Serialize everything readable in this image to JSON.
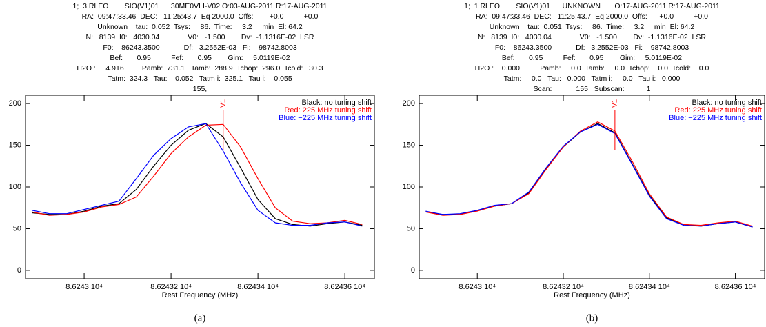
{
  "chart_data": [
    {
      "type": "line",
      "header_lines": [
        "1;  3 RLEO        SIO(V1)01      30ME0VLI-V02 O:03-AUG-2011 R:17-AUG-2011",
        "RA:  09:47:33.46  DEC:   11:25:43.7  Eq 2000.0  Offs:        +0.0          +0.0",
        "Unknown    tau:  0.052  Tsys:     86.  Time:     3.2     min  El: 64.2",
        "N:   8139  I0:   4030.04              V0:   -1.500        Dv:  -1.1316E-02  LSR",
        "F0:    86243.3500            Df:   3.2552E-03   Fi:    98742.8003",
        "Bef:       0.95          Fef:       0.95        Gim:     5.0119E-02",
        "H2O :     4.916         Pamb:  731.1   Tamb:  288.9  Tchop:  296.0  Tcold:   30.3",
        "Tatm:  324.3   Tau:    0.052   Tatm i:  325.1   Tau i:    0.055",
        "155,"
      ],
      "xlabel": "Rest Frequency (MHz)",
      "caption": "(a)",
      "x": [
        86242.88,
        86242.92,
        86242.96,
        86243.0,
        86243.04,
        86243.08,
        86243.12,
        86243.16,
        86243.2,
        86243.24,
        86243.28,
        86243.32,
        86243.36,
        86243.4,
        86243.44,
        86243.48,
        86243.52,
        86243.56,
        86243.6,
        86243.64
      ],
      "series": [
        {
          "name": "Black: no tuning shift",
          "color": "#000000",
          "values": [
            69,
            67,
            67,
            71,
            77,
            80,
            97,
            125,
            150,
            168,
            176,
            160,
            123,
            85,
            62,
            55,
            53,
            56,
            58,
            54
          ]
        },
        {
          "name": "Red: 225 MHz tuning shift",
          "color": "#ff0000",
          "values": [
            70,
            66,
            67,
            70,
            76,
            79,
            88,
            113,
            140,
            160,
            174,
            175,
            148,
            110,
            75,
            59,
            56,
            57,
            60,
            55
          ]
        },
        {
          "name": "Blue: −225 MHz tuning shift",
          "color": "#0000ff",
          "values": [
            72,
            68,
            68,
            73,
            78,
            83,
            110,
            138,
            158,
            172,
            176,
            143,
            105,
            72,
            57,
            54,
            54,
            57,
            58,
            53
          ]
        }
      ],
      "marker": {
        "label": "V1",
        "x": 86243.32,
        "color": "#ff0000"
      },
      "xlim": [
        86242.865,
        86243.668
      ],
      "xticks": [
        {
          "value": 86243.0,
          "label": "8.6243 10⁴"
        },
        {
          "value": 86243.2,
          "label": "8.62432 10⁴"
        },
        {
          "value": 86243.4,
          "label": "8.62434 10⁴"
        },
        {
          "value": 86243.6,
          "label": "8.62436 10⁴"
        }
      ],
      "ylim": [
        -10,
        210
      ],
      "yticks": [
        0,
        50,
        100,
        150,
        200
      ],
      "grid": false
    },
    {
      "type": "line",
      "header_lines": [
        "1;  1 RLEO        SIO(V1)01      UNKNOWN       O:17-AUG-2011 R:17-AUG-2011",
        "RA:  09:47:33.46  DEC:   11:25:43.7  Eq 2000.0  Offs:      +0.0          +0.0",
        "Unknown    tau:  0.051  Tsys:     86.  Time:     3.2     min  El: 64.2",
        "N:   8139  I0:   4030.04              V0:   -1.500        Dv:  -1.1316E-02  LSR",
        "F0:    86243.3500            Df:   3.2552E-03   Fi:    98742.8003",
        "Bef:       0.95          Fef:       0.95        Gim:     5.0119E-02",
        "H2O :    0.000          Pamb:     0.0  Tamb:     0.0  Tchop:    0.0  Tcold:    0.0",
        "Tatm:     0.0   Tau:   0.000   Tatm i:     0.0   Tau i:   0.000",
        "Scan:            155   Subscan:           1"
      ],
      "xlabel": "Rest Frequency (MHz)",
      "caption": "(b)",
      "x": [
        86242.88,
        86242.92,
        86242.96,
        86243.0,
        86243.04,
        86243.08,
        86243.12,
        86243.16,
        86243.2,
        86243.24,
        86243.28,
        86243.32,
        86243.36,
        86243.4,
        86243.44,
        86243.48,
        86243.52,
        86243.56,
        86243.6,
        86243.64
      ],
      "series": [
        {
          "name": "Black: no tuning shift",
          "color": "#000000",
          "values": [
            70,
            67,
            67,
            72,
            77,
            80,
            93,
            122,
            148,
            166,
            176,
            165,
            128,
            90,
            63,
            55,
            53,
            56,
            58,
            52
          ]
        },
        {
          "name": "Red: 225 MHz tuning shift",
          "color": "#ff0000",
          "values": [
            70,
            66,
            67,
            71,
            77,
            80,
            92,
            121,
            148,
            167,
            178,
            167,
            131,
            92,
            64,
            55,
            54,
            57,
            59,
            53
          ]
        },
        {
          "name": "Blue: −225 MHz tuning shift",
          "color": "#0000ff",
          "values": [
            71,
            67,
            68,
            72,
            78,
            80,
            94,
            123,
            149,
            166,
            175,
            164,
            127,
            89,
            62,
            54,
            53,
            56,
            58,
            52
          ]
        }
      ],
      "marker": {
        "label": "V1",
        "x": 86243.32,
        "color": "#ff0000"
      },
      "xlim": [
        86242.865,
        86243.668
      ],
      "xticks": [
        {
          "value": 86243.0,
          "label": "8.6243 10⁴"
        },
        {
          "value": 86243.2,
          "label": "8.62432 10⁴"
        },
        {
          "value": 86243.4,
          "label": "8.62434 10⁴"
        },
        {
          "value": 86243.6,
          "label": "8.62436 10⁴"
        }
      ],
      "ylim": [
        -10,
        210
      ],
      "yticks": [
        0,
        50,
        100,
        150,
        200
      ],
      "grid": false
    }
  ]
}
